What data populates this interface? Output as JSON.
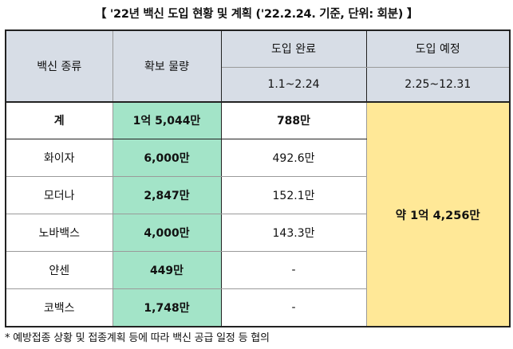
{
  "title": "【 '22년 백신 도입 현황 및 계획 ('22.2.24. 기준, 단위: 회분) 】",
  "headers": {
    "type": "백신 종류",
    "secured": "확보 물량",
    "completed": "도입 완료",
    "planned": "도입 예정",
    "completed_period": "1.1~2.24",
    "planned_period": "2.25~12.31"
  },
  "total": {
    "label": "계",
    "secured": "1억 5,044만",
    "completed": "788만"
  },
  "rows": [
    {
      "name": "화이자",
      "secured": "6,000만",
      "completed": "492.6만"
    },
    {
      "name": "모더나",
      "secured": "2,847만",
      "completed": "152.1만"
    },
    {
      "name": "노바백스",
      "secured": "4,000만",
      "completed": "143.3만"
    },
    {
      "name": "얀센",
      "secured": "449만",
      "completed": "-"
    },
    {
      "name": "코백스",
      "secured": "1,748만",
      "completed": "-"
    }
  ],
  "planned_total": "약 1억 4,256만",
  "footnote": "* 예방접종 상황 및 접종계획 등에 따라 백신 공급 일정 등 협의",
  "colors": {
    "header_bg": "#d7dde6",
    "secured_bg": "#a3e4c8",
    "planned_bg": "#ffe897"
  }
}
